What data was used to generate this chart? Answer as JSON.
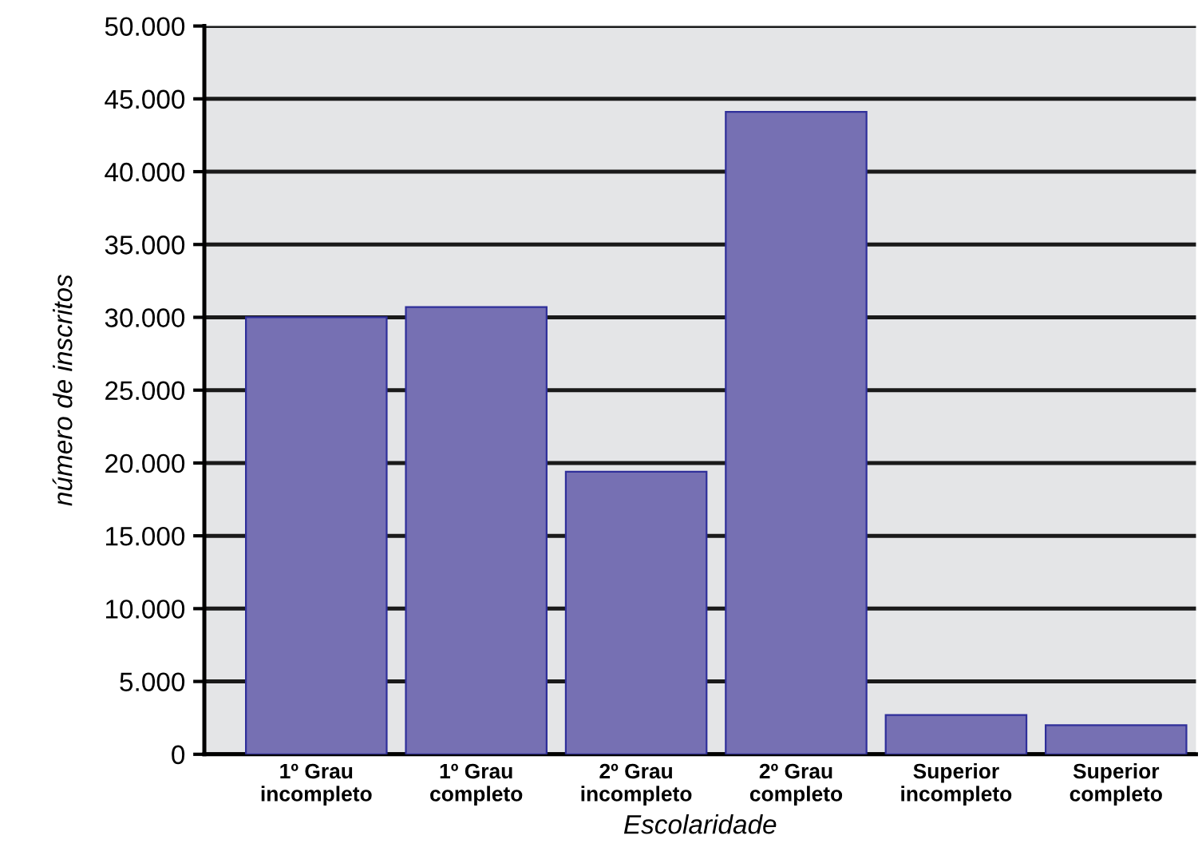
{
  "chart_data": {
    "type": "bar",
    "xlabel": "Escolaridade",
    "ylabel": "número de inscritos",
    "categories": [
      "1º Grau\nincompleto",
      "1º Grau\ncompleto",
      "2º Grau\nincompleto",
      "2º Grau\ncompleto",
      "Superior\nincompleto",
      "Superior\ncompleto"
    ],
    "values": [
      30000,
      30700,
      19400,
      44100,
      2700,
      2000
    ],
    "color": "#7670b3",
    "ylim": [
      0,
      50000
    ],
    "yticks": [
      {
        "value": 0,
        "label": "0"
      },
      {
        "value": 5000,
        "label": "5.000"
      },
      {
        "value": 10000,
        "label": "10.000"
      },
      {
        "value": 15000,
        "label": "15.000"
      },
      {
        "value": 20000,
        "label": "20.000"
      },
      {
        "value": 25000,
        "label": "25.000"
      },
      {
        "value": 30000,
        "label": "30.000"
      },
      {
        "value": 35000,
        "label": "35.000"
      },
      {
        "value": 40000,
        "label": "40.000"
      },
      {
        "value": 45000,
        "label": "45.000"
      },
      {
        "value": 50000,
        "label": "50.000"
      }
    ],
    "grid": "y"
  }
}
